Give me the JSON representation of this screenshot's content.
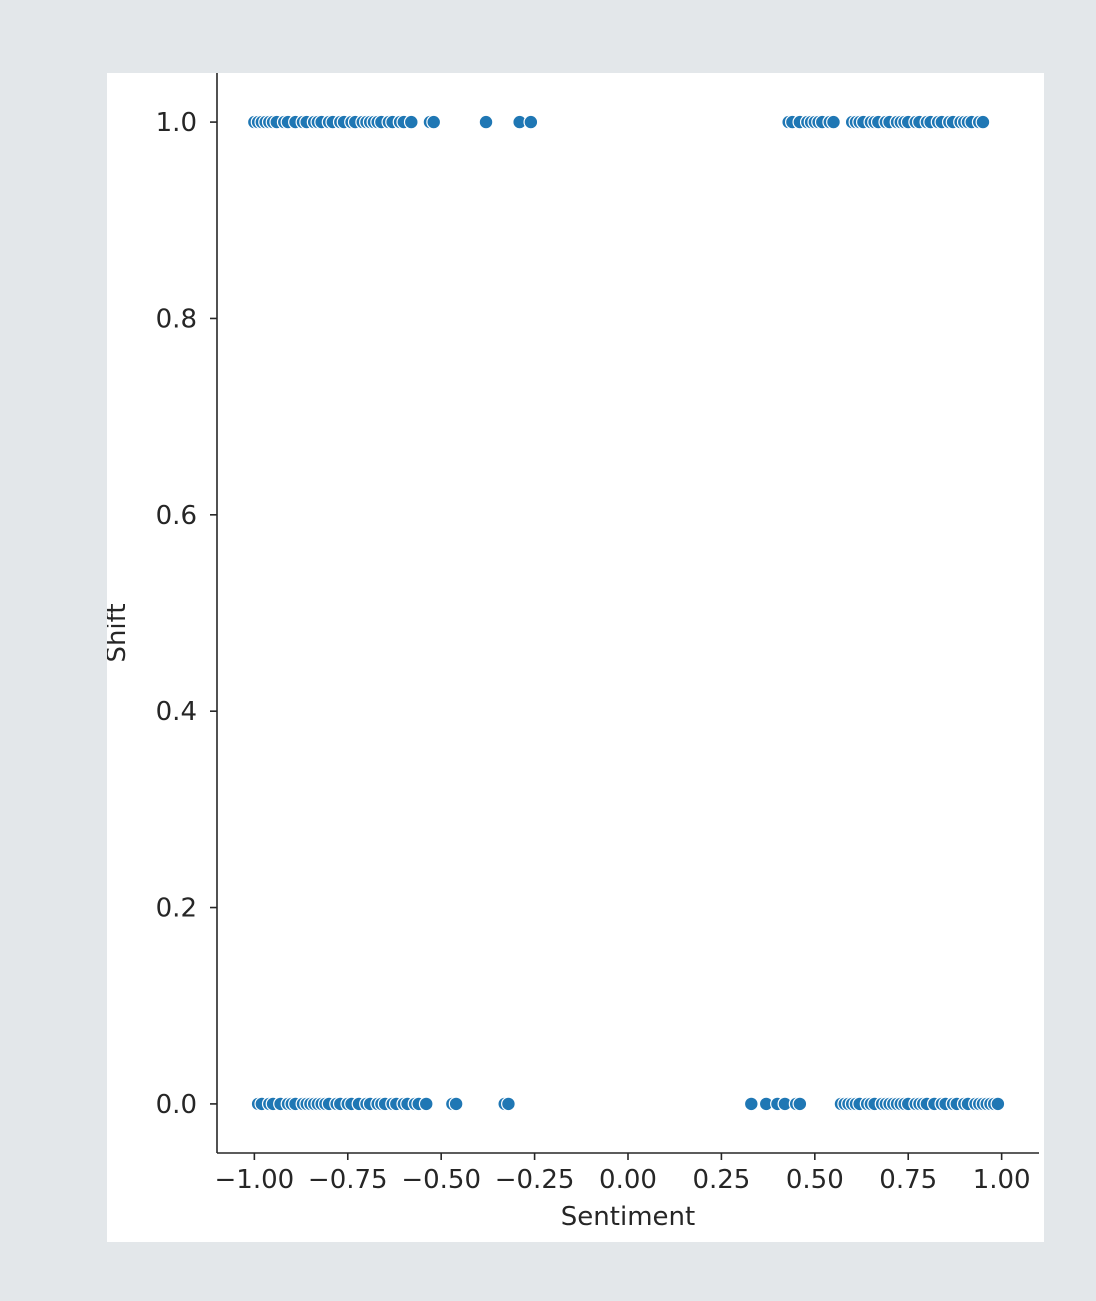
{
  "chart_data": {
    "type": "scatter",
    "xlabel": "Sentiment",
    "ylabel": "Shift",
    "xlim": [
      -1.1,
      1.1
    ],
    "ylim": [
      -0.05,
      1.05
    ],
    "xticks": [
      -1.0,
      -0.75,
      -0.5,
      -0.25,
      0.0,
      0.25,
      0.5,
      0.75,
      1.0
    ],
    "xtick_labels": [
      "−1.00",
      "−0.75",
      "−0.50",
      "−0.25",
      "0.00",
      "0.25",
      "0.50",
      "0.75",
      "1.00"
    ],
    "yticks": [
      0.0,
      0.2,
      0.4,
      0.6,
      0.8,
      1.0
    ],
    "ytick_labels": [
      "0.0",
      "0.2",
      "0.4",
      "0.6",
      "0.8",
      "1.0"
    ],
    "grid": false,
    "color": "#1f77b4",
    "series": [
      {
        "x": [
          -1.0,
          -0.99,
          -0.98,
          -0.97,
          -0.96,
          -0.95,
          -0.94,
          -0.92,
          -0.91,
          -0.89,
          -0.87,
          -0.86,
          -0.84,
          -0.83,
          -0.82,
          -0.8,
          -0.79,
          -0.77,
          -0.76,
          -0.74,
          -0.73,
          -0.71,
          -0.7,
          -0.69,
          -0.68,
          -0.67,
          -0.66,
          -0.64,
          -0.63,
          -0.61,
          -0.6,
          -0.58,
          -0.53,
          -0.52,
          -0.38,
          -0.29,
          -0.26,
          0.43,
          0.44,
          0.46,
          0.48,
          0.49,
          0.5,
          0.51,
          0.52,
          0.54,
          0.55,
          0.6,
          0.61,
          0.62,
          0.63,
          0.65,
          0.66,
          0.67,
          0.69,
          0.7,
          0.72,
          0.73,
          0.74,
          0.75,
          0.77,
          0.78,
          0.8,
          0.81,
          0.83,
          0.84,
          0.86,
          0.87,
          0.89,
          0.9,
          0.91,
          0.92,
          0.94,
          0.95
        ],
        "y": [
          1,
          1,
          1,
          1,
          1,
          1,
          1,
          1,
          1,
          1,
          1,
          1,
          1,
          1,
          1,
          1,
          1,
          1,
          1,
          1,
          1,
          1,
          1,
          1,
          1,
          1,
          1,
          1,
          1,
          1,
          1,
          1,
          1,
          1,
          1,
          1,
          1,
          1,
          1,
          1,
          1,
          1,
          1,
          1,
          1,
          1,
          1,
          1,
          1,
          1,
          1,
          1,
          1,
          1,
          1,
          1,
          1,
          1,
          1,
          1,
          1,
          1,
          1,
          1,
          1,
          1,
          1,
          1,
          1,
          1,
          1,
          1,
          1,
          1
        ]
      },
      {
        "x": [
          -0.99,
          -0.98,
          -0.96,
          -0.95,
          -0.93,
          -0.91,
          -0.9,
          -0.89,
          -0.87,
          -0.86,
          -0.85,
          -0.84,
          -0.83,
          -0.82,
          -0.81,
          -0.8,
          -0.78,
          -0.77,
          -0.75,
          -0.74,
          -0.72,
          -0.7,
          -0.69,
          -0.67,
          -0.66,
          -0.65,
          -0.63,
          -0.62,
          -0.6,
          -0.59,
          -0.57,
          -0.56,
          -0.54,
          -0.47,
          -0.46,
          -0.33,
          -0.32,
          0.33,
          0.37,
          0.4,
          0.42,
          0.45,
          0.46,
          0.57,
          0.58,
          0.59,
          0.6,
          0.61,
          0.62,
          0.64,
          0.65,
          0.66,
          0.68,
          0.69,
          0.7,
          0.71,
          0.72,
          0.73,
          0.74,
          0.75,
          0.77,
          0.78,
          0.79,
          0.8,
          0.82,
          0.84,
          0.85,
          0.87,
          0.88,
          0.9,
          0.91,
          0.93,
          0.94,
          0.95,
          0.96,
          0.97,
          0.98,
          0.99
        ],
        "y": [
          0,
          0,
          0,
          0,
          0,
          0,
          0,
          0,
          0,
          0,
          0,
          0,
          0,
          0,
          0,
          0,
          0,
          0,
          0,
          0,
          0,
          0,
          0,
          0,
          0,
          0,
          0,
          0,
          0,
          0,
          0,
          0,
          0,
          0,
          0,
          0,
          0,
          0,
          0,
          0,
          0,
          0,
          0,
          0,
          0,
          0,
          0,
          0,
          0,
          0,
          0,
          0,
          0,
          0,
          0,
          0,
          0,
          0,
          0,
          0,
          0,
          0,
          0,
          0,
          0,
          0,
          0,
          0,
          0,
          0,
          0,
          0,
          0,
          0,
          0,
          0,
          0,
          0
        ]
      }
    ]
  }
}
